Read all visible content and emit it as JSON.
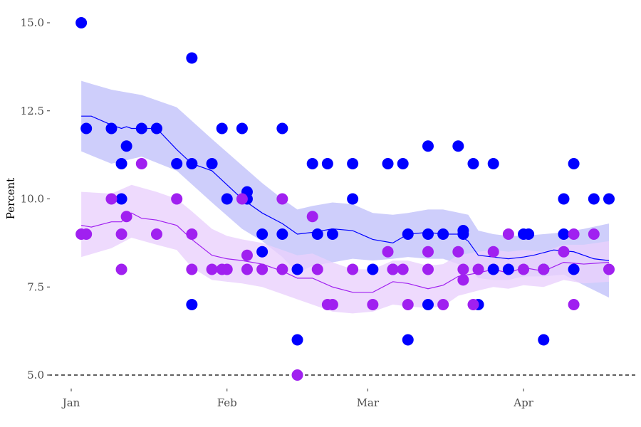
{
  "chart_data": {
    "type": "scatter",
    "title": "",
    "xlabel": "",
    "ylabel": "Percent",
    "x_unit": "day-of-year",
    "xlim": [
      -2,
      109
    ],
    "ylim": [
      4.6,
      15.3
    ],
    "x_ticks": [
      {
        "value": 0,
        "label": "Jan"
      },
      {
        "value": 31,
        "label": "Feb"
      },
      {
        "value": 59,
        "label": "Mar"
      },
      {
        "value": 90,
        "label": "Apr"
      }
    ],
    "y_ticks": [
      {
        "value": 5.0,
        "label": "5.0"
      },
      {
        "value": 7.5,
        "label": "7.5"
      },
      {
        "value": 10.0,
        "label": "10.0"
      },
      {
        "value": 12.5,
        "label": "12.5"
      },
      {
        "value": 15.0,
        "label": "15.0"
      }
    ],
    "reference_line": {
      "y": 5.0,
      "style": "dashed"
    },
    "grid": false,
    "legend": "none",
    "series": [
      {
        "color": "#0000ff",
        "band_color": "#c9c9fb",
        "points": [
          [
            2,
            15
          ],
          [
            3,
            12
          ],
          [
            8,
            12
          ],
          [
            10,
            11
          ],
          [
            10,
            10
          ],
          [
            11,
            11.5
          ],
          [
            14,
            12
          ],
          [
            17,
            12
          ],
          [
            21,
            11
          ],
          [
            24,
            14
          ],
          [
            24,
            11
          ],
          [
            24,
            7
          ],
          [
            28,
            11
          ],
          [
            30,
            12
          ],
          [
            31,
            10
          ],
          [
            34,
            12
          ],
          [
            35,
            10.2
          ],
          [
            35,
            10
          ],
          [
            38,
            9
          ],
          [
            38,
            8.5
          ],
          [
            42,
            12
          ],
          [
            42,
            9
          ],
          [
            45,
            8
          ],
          [
            45,
            6
          ],
          [
            48,
            11
          ],
          [
            49,
            9
          ],
          [
            51,
            11
          ],
          [
            52,
            9
          ],
          [
            56,
            11
          ],
          [
            56,
            10
          ],
          [
            60,
            8
          ],
          [
            63,
            11
          ],
          [
            64,
            8
          ],
          [
            66,
            11
          ],
          [
            67,
            9
          ],
          [
            67,
            6
          ],
          [
            71,
            11.5
          ],
          [
            71,
            9
          ],
          [
            71,
            7
          ],
          [
            74,
            9
          ],
          [
            77,
            11.5
          ],
          [
            78,
            9
          ],
          [
            78,
            9.1
          ],
          [
            80,
            11
          ],
          [
            81,
            7
          ],
          [
            84,
            11
          ],
          [
            84,
            8
          ],
          [
            87,
            8
          ],
          [
            90,
            9
          ],
          [
            91,
            9
          ],
          [
            94,
            8
          ],
          [
            94,
            6
          ],
          [
            98,
            10
          ],
          [
            98,
            9
          ],
          [
            100,
            11
          ],
          [
            100,
            8
          ],
          [
            104,
            10
          ],
          [
            107,
            10
          ]
        ],
        "trend": [
          [
            2,
            12.35
          ],
          [
            4,
            12.35
          ],
          [
            8,
            12.1
          ],
          [
            10,
            12.0
          ],
          [
            11,
            12.05
          ],
          [
            12,
            12.0
          ],
          [
            14,
            12.0
          ],
          [
            17,
            12.0
          ],
          [
            21,
            11.4
          ],
          [
            24,
            11.0
          ],
          [
            28,
            10.8
          ],
          [
            31,
            10.4
          ],
          [
            34,
            10.0
          ],
          [
            38,
            9.6
          ],
          [
            42,
            9.3
          ],
          [
            45,
            9.0
          ],
          [
            48,
            9.05
          ],
          [
            52,
            9.15
          ],
          [
            56,
            9.1
          ],
          [
            60,
            8.85
          ],
          [
            64,
            8.75
          ],
          [
            67,
            9.0
          ],
          [
            71,
            9.05
          ],
          [
            74,
            9.0
          ],
          [
            77,
            9.0
          ],
          [
            79,
            8.8
          ],
          [
            81,
            8.4
          ],
          [
            84,
            8.35
          ],
          [
            87,
            8.3
          ],
          [
            90,
            8.35
          ],
          [
            92,
            8.4
          ],
          [
            96,
            8.55
          ],
          [
            100,
            8.5
          ],
          [
            104,
            8.3
          ],
          [
            107,
            8.25
          ]
        ],
        "band": [
          [
            2,
            11.35,
            13.35
          ],
          [
            8,
            11.0,
            13.1
          ],
          [
            14,
            11.2,
            12.95
          ],
          [
            21,
            10.8,
            12.6
          ],
          [
            28,
            9.9,
            11.7
          ],
          [
            34,
            9.15,
            10.95
          ],
          [
            38,
            8.8,
            10.45
          ],
          [
            42,
            8.35,
            10.0
          ],
          [
            45,
            7.9,
            9.7
          ],
          [
            48,
            8.1,
            9.8
          ],
          [
            52,
            8.2,
            9.9
          ],
          [
            56,
            8.3,
            9.85
          ],
          [
            60,
            8.25,
            9.6
          ],
          [
            64,
            8.3,
            9.55
          ],
          [
            67,
            8.35,
            9.6
          ],
          [
            71,
            8.3,
            9.7
          ],
          [
            74,
            8.3,
            9.7
          ],
          [
            79,
            8.05,
            9.55
          ],
          [
            81,
            7.75,
            9.1
          ],
          [
            84,
            7.7,
            9.0
          ],
          [
            87,
            7.7,
            8.95
          ],
          [
            90,
            7.8,
            8.95
          ],
          [
            94,
            7.8,
            9.0
          ],
          [
            98,
            7.85,
            9.05
          ],
          [
            102,
            7.55,
            9.15
          ],
          [
            107,
            7.2,
            9.3
          ]
        ]
      },
      {
        "color": "#a020f0",
        "band_color": "#ead1fc",
        "points": [
          [
            2,
            9
          ],
          [
            3,
            9
          ],
          [
            8,
            10
          ],
          [
            10,
            9
          ],
          [
            10,
            8
          ],
          [
            11,
            9.5
          ],
          [
            14,
            11
          ],
          [
            17,
            9
          ],
          [
            21,
            10
          ],
          [
            24,
            9
          ],
          [
            24,
            8
          ],
          [
            28,
            8
          ],
          [
            30,
            8
          ],
          [
            31,
            8
          ],
          [
            34,
            10
          ],
          [
            35,
            8
          ],
          [
            35,
            8.4
          ],
          [
            38,
            8
          ],
          [
            42,
            10
          ],
          [
            42,
            8
          ],
          [
            45,
            5
          ],
          [
            48,
            9.5
          ],
          [
            49,
            8
          ],
          [
            51,
            7
          ],
          [
            52,
            7
          ],
          [
            56,
            8
          ],
          [
            60,
            7
          ],
          [
            63,
            8.5
          ],
          [
            64,
            8
          ],
          [
            66,
            8
          ],
          [
            67,
            7
          ],
          [
            71,
            8.5
          ],
          [
            71,
            8
          ],
          [
            74,
            7
          ],
          [
            77,
            8.5
          ],
          [
            78,
            8
          ],
          [
            78,
            7.7
          ],
          [
            80,
            7
          ],
          [
            81,
            8
          ],
          [
            84,
            8.5
          ],
          [
            87,
            9
          ],
          [
            90,
            8
          ],
          [
            94,
            8
          ],
          [
            98,
            8.5
          ],
          [
            100,
            9
          ],
          [
            100,
            7
          ],
          [
            104,
            9
          ],
          [
            107,
            8
          ]
        ],
        "trend": [
          [
            2,
            9.25
          ],
          [
            4,
            9.2
          ],
          [
            8,
            9.35
          ],
          [
            10,
            9.35
          ],
          [
            11,
            9.5
          ],
          [
            12,
            9.6
          ],
          [
            14,
            9.45
          ],
          [
            17,
            9.4
          ],
          [
            21,
            9.25
          ],
          [
            24,
            8.85
          ],
          [
            28,
            8.4
          ],
          [
            31,
            8.3
          ],
          [
            34,
            8.25
          ],
          [
            38,
            8.15
          ],
          [
            42,
            7.95
          ],
          [
            45,
            7.75
          ],
          [
            48,
            7.75
          ],
          [
            52,
            7.5
          ],
          [
            56,
            7.35
          ],
          [
            60,
            7.35
          ],
          [
            64,
            7.65
          ],
          [
            67,
            7.6
          ],
          [
            71,
            7.45
          ],
          [
            74,
            7.55
          ],
          [
            77,
            7.8
          ],
          [
            81,
            7.9
          ],
          [
            84,
            8.0
          ],
          [
            87,
            7.9
          ],
          [
            90,
            8.05
          ],
          [
            94,
            7.95
          ],
          [
            98,
            8.2
          ],
          [
            102,
            8.15
          ],
          [
            107,
            8.2
          ]
        ],
        "band": [
          [
            2,
            8.35,
            10.2
          ],
          [
            8,
            8.6,
            10.15
          ],
          [
            12,
            8.9,
            10.4
          ],
          [
            17,
            8.7,
            10.2
          ],
          [
            21,
            8.55,
            10.0
          ],
          [
            24,
            8.05,
            9.65
          ],
          [
            28,
            7.7,
            9.15
          ],
          [
            31,
            7.65,
            8.95
          ],
          [
            34,
            7.6,
            8.85
          ],
          [
            38,
            7.5,
            8.75
          ],
          [
            42,
            7.3,
            8.55
          ],
          [
            45,
            7.15,
            8.4
          ],
          [
            48,
            7.0,
            8.45
          ],
          [
            52,
            6.8,
            8.2
          ],
          [
            56,
            6.75,
            8.0
          ],
          [
            60,
            6.8,
            8.0
          ],
          [
            64,
            7.0,
            8.25
          ],
          [
            67,
            6.95,
            8.25
          ],
          [
            71,
            6.9,
            8.1
          ],
          [
            74,
            6.95,
            8.15
          ],
          [
            77,
            7.25,
            8.4
          ],
          [
            81,
            7.4,
            8.5
          ],
          [
            84,
            7.5,
            8.55
          ],
          [
            87,
            7.45,
            8.5
          ],
          [
            90,
            7.55,
            8.55
          ],
          [
            94,
            7.5,
            8.5
          ],
          [
            98,
            7.7,
            8.7
          ],
          [
            102,
            7.6,
            8.7
          ],
          [
            107,
            7.65,
            8.8
          ]
        ]
      }
    ]
  }
}
